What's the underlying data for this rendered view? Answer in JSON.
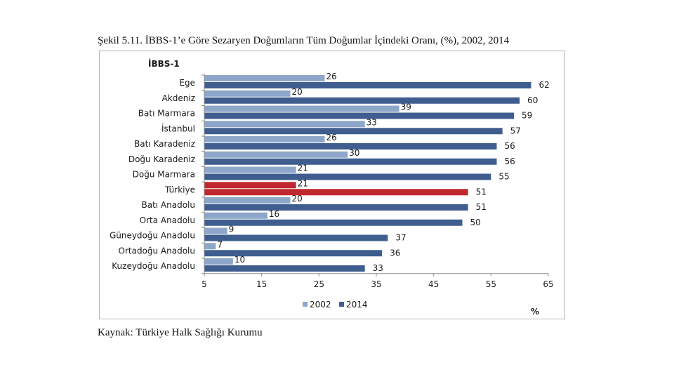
{
  "figure": {
    "title": "Şekil 5.11. İBBS-1’e Göre Sezaryen Doğumların Tüm Doğumlar İçindeki Oranı, (%), 2002, 2014",
    "source": "Kaynak: Türkiye Halk Sağlığı Kurumu"
  },
  "chart_data": {
    "type": "bar",
    "orientation": "horizontal",
    "subtitle": "İBBS-1",
    "unit": "%",
    "categories": [
      "Ege",
      "Akdeniz",
      "Batı Marmara",
      "İstanbul",
      "Batı Karadeniz",
      "Doğu Karadeniz",
      "Doğu Marmara",
      "Türkiye",
      "Batı Anadolu",
      "Orta Anadolu",
      "Güneydoğu Anadolu",
      "Ortadoğu Anadolu",
      "Kuzeydoğu Anadolu"
    ],
    "series": [
      {
        "name": "2002",
        "color": "#8ea6c9",
        "values": [
          26,
          20,
          39,
          33,
          26,
          30,
          21,
          21,
          20,
          16,
          9,
          7,
          10
        ]
      },
      {
        "name": "2014",
        "color": "#3f5e8f",
        "values": [
          62,
          60,
          59,
          57,
          56,
          56,
          55,
          51,
          51,
          50,
          37,
          36,
          33
        ]
      }
    ],
    "highlight": {
      "category": "Türkiye",
      "color": "#c0282f"
    },
    "xlim": [
      5,
      65
    ],
    "xticks": [
      5,
      15,
      25,
      35,
      45,
      55,
      65
    ],
    "legend": "bottom-center"
  }
}
